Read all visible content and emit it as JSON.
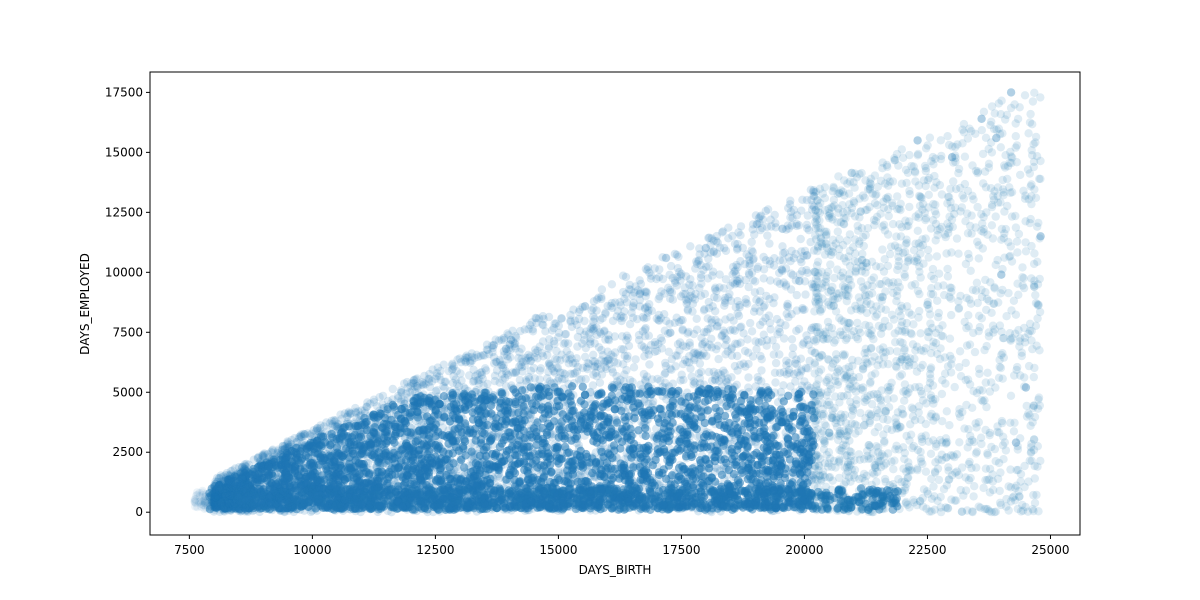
{
  "chart_data": {
    "type": "scatter",
    "title": "",
    "xlabel": "DAYS_BIRTH",
    "ylabel": "DAYS_EMPLOYED",
    "xlim": [
      6700,
      25600
    ],
    "ylim": [
      -950,
      18350
    ],
    "xticks": [
      7500,
      10000,
      12500,
      15000,
      17500,
      20000,
      22500,
      25000
    ],
    "yticks": [
      0,
      2500,
      5000,
      7500,
      10000,
      12500,
      15000,
      17500
    ],
    "xtick_labels": [
      "7500",
      "10000",
      "12500",
      "15000",
      "17500",
      "20000",
      "22500",
      "25000"
    ],
    "ytick_labels": [
      "0",
      "2500",
      "5000",
      "7500",
      "10000",
      "12500",
      "15000",
      "17500"
    ],
    "grid": false,
    "legend": "none",
    "marker_color": "#1f77b4",
    "marker_alpha": 0.08,
    "point_density": {
      "x_min": 7600,
      "dense_x_end": 20200,
      "x_max": 24800,
      "upper_boundary": [
        [
          8000,
          1400
        ],
        [
          10000,
          3500
        ],
        [
          12500,
          6000
        ],
        [
          15000,
          8600
        ],
        [
          17500,
          11000
        ],
        [
          20000,
          13400
        ],
        [
          22500,
          15600
        ],
        [
          24200,
          17500
        ]
      ],
      "dense_core_top": [
        [
          8000,
          1100
        ],
        [
          10000,
          3000
        ],
        [
          12000,
          4800
        ],
        [
          14000,
          5200
        ],
        [
          16000,
          5300
        ],
        [
          18000,
          5200
        ],
        [
          20100,
          5000
        ]
      ]
    },
    "highlight_points": [
      [
        24200,
        17500
      ],
      [
        23900,
        15600
      ],
      [
        23600,
        16400
      ],
      [
        22300,
        15500
      ],
      [
        23000,
        14800
      ],
      [
        24000,
        9900
      ],
      [
        24800,
        11500
      ],
      [
        24500,
        5200
      ],
      [
        24300,
        2900
      ]
    ]
  }
}
